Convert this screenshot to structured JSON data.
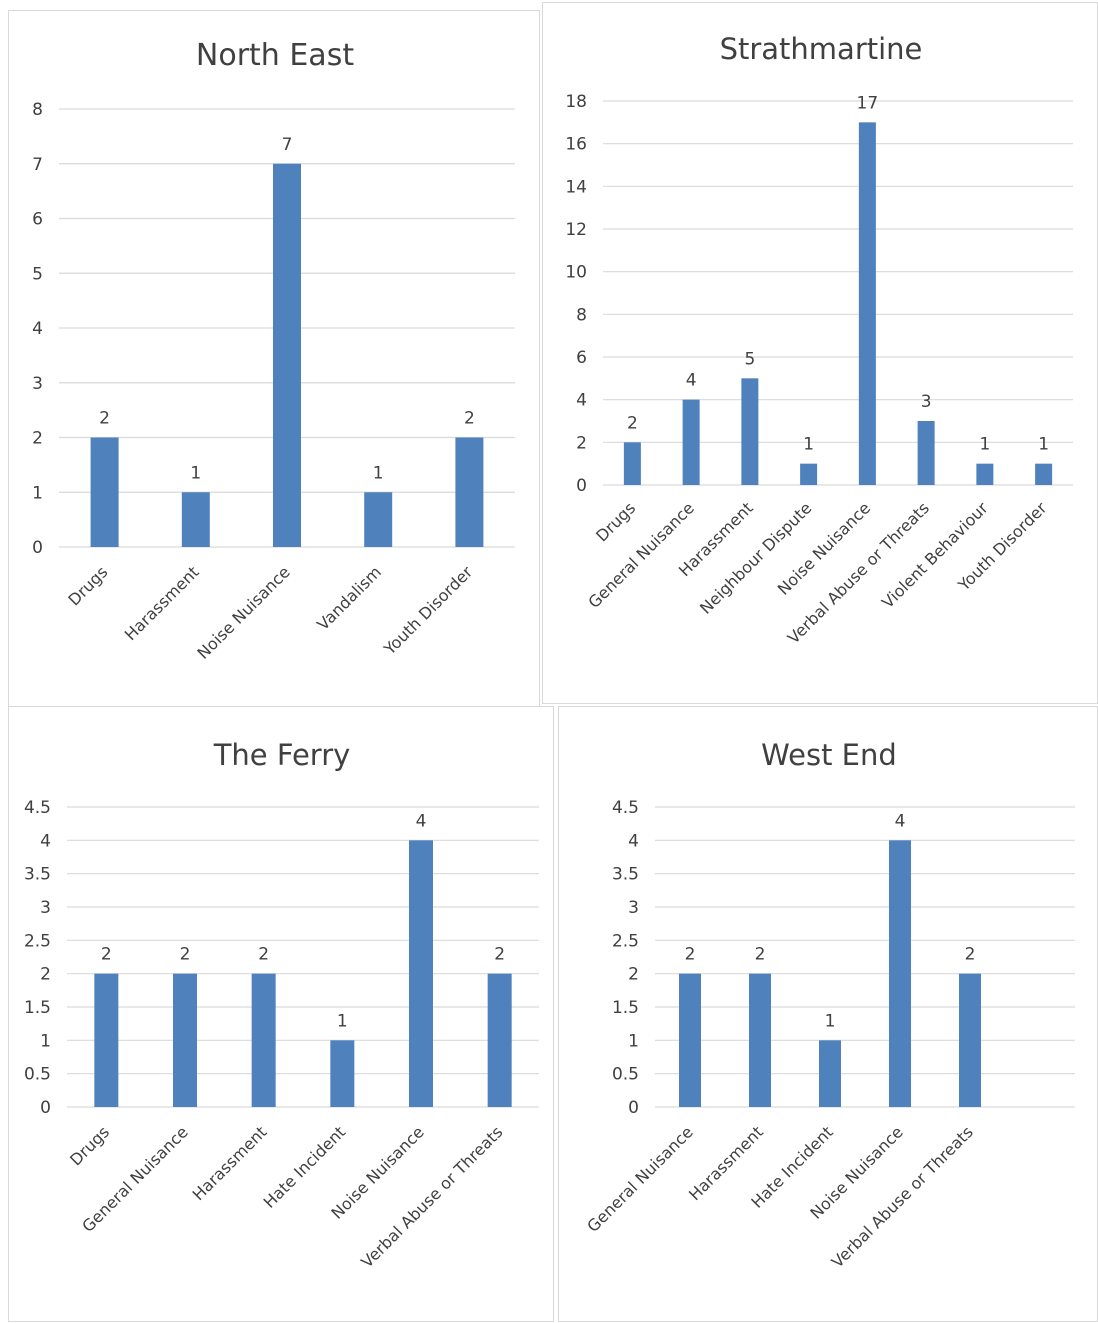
{
  "colors": {
    "bar": "#4f81bd",
    "grid": "#d9d9d9",
    "text": "#404040",
    "border": "#d9d9d9"
  },
  "chart_data": [
    {
      "type": "bar",
      "title": "North East",
      "categories": [
        "Drugs",
        "Harassment",
        "Noise Nuisance",
        "Vandalism",
        "Youth Disorder"
      ],
      "values": [
        2,
        1,
        7,
        1,
        2
      ],
      "data_labels": [
        "2",
        "1",
        "7",
        "1",
        "2"
      ],
      "ylim": [
        0,
        8
      ],
      "yticks": [
        "0",
        "1",
        "2",
        "3",
        "4",
        "5",
        "6",
        "7",
        "8"
      ],
      "xlabel": "",
      "ylabel": "",
      "grid": true,
      "legend": "none"
    },
    {
      "type": "bar",
      "title": "Strathmartine",
      "categories": [
        "Drugs",
        "General Nuisance",
        "Harassment",
        "Neighbour Dispute",
        "Noise Nuisance",
        "Verbal Abuse or Threats",
        "Violent Behaviour",
        "Youth Disorder"
      ],
      "values": [
        2,
        4,
        5,
        1,
        17,
        3,
        1,
        1
      ],
      "data_labels": [
        "2",
        "4",
        "5",
        "1",
        "17",
        "3",
        "1",
        "1"
      ],
      "ylim": [
        0,
        18
      ],
      "yticks": [
        "0",
        "2",
        "4",
        "6",
        "8",
        "10",
        "12",
        "14",
        "16",
        "18"
      ],
      "xlabel": "",
      "ylabel": "",
      "grid": true,
      "legend": "none"
    },
    {
      "type": "bar",
      "title": "The Ferry",
      "categories": [
        "Drugs",
        "General Nuisance",
        "Harassment",
        "Hate Incident",
        "Noise Nuisance",
        "Verbal Abuse or Threats"
      ],
      "values": [
        2,
        2,
        2,
        1,
        4,
        2
      ],
      "data_labels": [
        "2",
        "2",
        "2",
        "1",
        "4",
        "2"
      ],
      "ylim": [
        0,
        4.5
      ],
      "yticks": [
        "0",
        "0.5",
        "1",
        "1.5",
        "2",
        "2.5",
        "3",
        "3.5",
        "4",
        "4.5"
      ],
      "xlabel": "",
      "ylabel": "",
      "grid": true,
      "legend": "none"
    },
    {
      "type": "bar",
      "title": "West End",
      "categories": [
        "General Nuisance",
        "Harassment",
        "Hate Incident",
        "Noise Nuisance",
        "Verbal Abuse or Threats",
        ""
      ],
      "values": [
        2,
        2,
        1,
        4,
        2,
        null
      ],
      "data_labels": [
        "2",
        "2",
        "1",
        "4",
        "2",
        ""
      ],
      "ylim": [
        0,
        4.5
      ],
      "yticks": [
        "0",
        "0.5",
        "1",
        "1.5",
        "2",
        "2.5",
        "3",
        "3.5",
        "4",
        "4.5"
      ],
      "xlabel": "",
      "ylabel": "",
      "grid": true,
      "legend": "none"
    }
  ]
}
